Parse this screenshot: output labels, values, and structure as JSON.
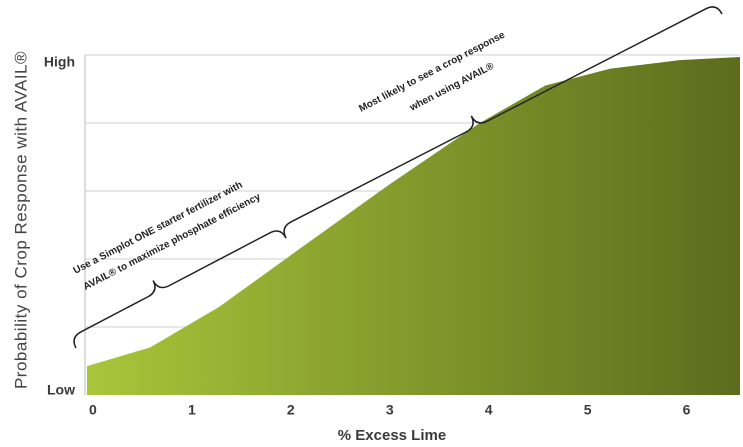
{
  "chart_data": {
    "type": "area",
    "xlabel": "% Excess Lime",
    "ylabel": "Probability of Crop Response with AVAIL®",
    "x": [
      -0.06,
      0.58,
      1.28,
      2.09,
      3.0,
      3.91,
      4.57,
      5.23,
      5.93,
      6.54
    ],
    "values": [
      0.085,
      0.14,
      0.26,
      0.43,
      0.62,
      0.8,
      0.91,
      0.96,
      0.985,
      0.994
    ],
    "color_start": "#a8c63a",
    "color_end": "#5d6b1d",
    "xlim": [
      -0.08,
      6.54
    ],
    "ylim": [
      0,
      1
    ],
    "xticks": [
      0,
      1,
      2,
      3,
      4,
      5,
      6
    ],
    "yticks": [
      {
        "value": 0,
        "label": "Low"
      },
      {
        "value": 1,
        "label": "High"
      }
    ],
    "ygrid": [
      0.2,
      0.4,
      0.6,
      0.8,
      1
    ],
    "annotations": [
      "Use a Simplot ONE starter fertilizer with",
      "AVAIL® to maximize phosphate efficiency",
      "Most likely to see a crop response",
      "when using AVAIL®"
    ]
  }
}
